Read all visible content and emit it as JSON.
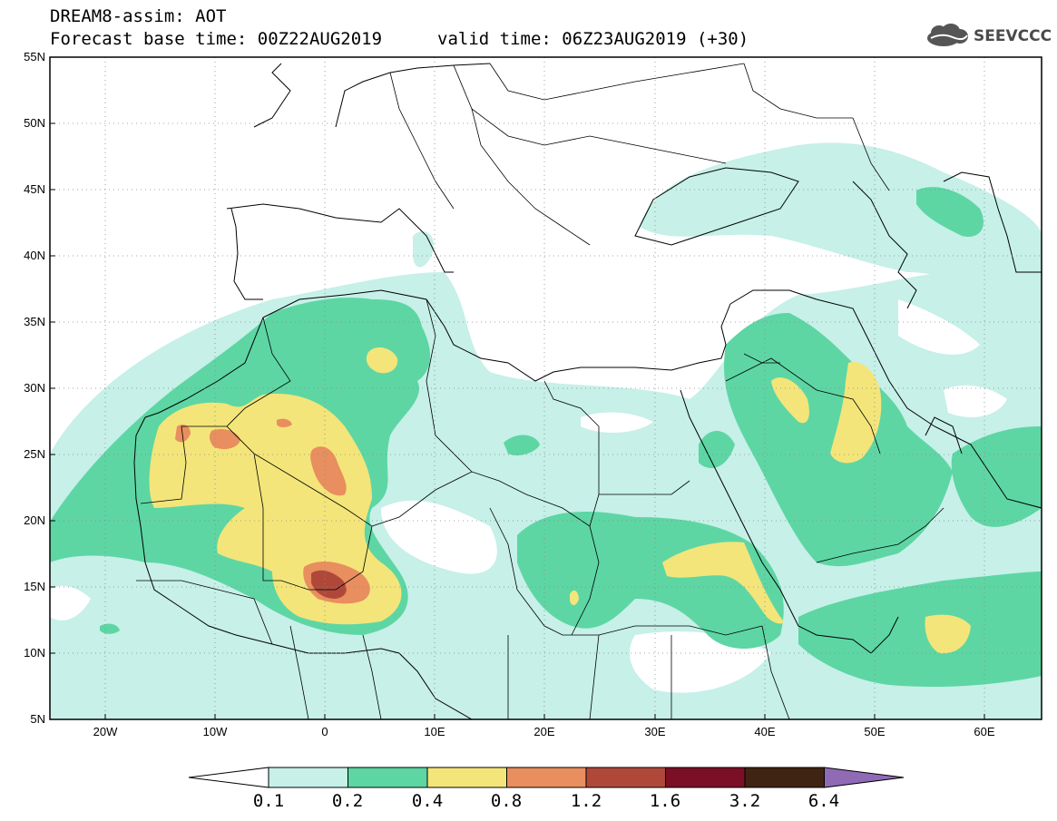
{
  "header": {
    "title_line1": "DREAM8-assim: AOT",
    "title_line2": "Forecast base time: 00Z22AUG2019",
    "title_line3": "valid time: 06Z23AUG2019 (+30)",
    "logo_text": "SEEVCCC"
  },
  "map": {
    "lat_labels": [
      "55N",
      "50N",
      "45N",
      "40N",
      "35N",
      "30N",
      "25N",
      "20N",
      "15N",
      "10N",
      "5N"
    ],
    "lon_labels": [
      "20W",
      "10W",
      "0",
      "10E",
      "20E",
      "30E",
      "40E",
      "50E",
      "60E"
    ],
    "lon_range": [
      -25,
      65
    ],
    "lat_range": [
      5,
      55
    ]
  },
  "colorbar": {
    "labels": [
      "0.1",
      "0.2",
      "0.4",
      "0.8",
      "1.2",
      "1.6",
      "3.2",
      "6.4"
    ],
    "colors": [
      "#ffffff",
      "#c6f0e8",
      "#5dd6a4",
      "#f3e57a",
      "#e88e5f",
      "#b0483a",
      "#7a0f25",
      "#3f2413",
      "#8f6bb5"
    ]
  },
  "colors": {
    "level1": "#c6f0e8",
    "level2": "#5dd6a4",
    "level3": "#f3e57a",
    "level4": "#e88e5f",
    "level5": "#b0483a"
  }
}
